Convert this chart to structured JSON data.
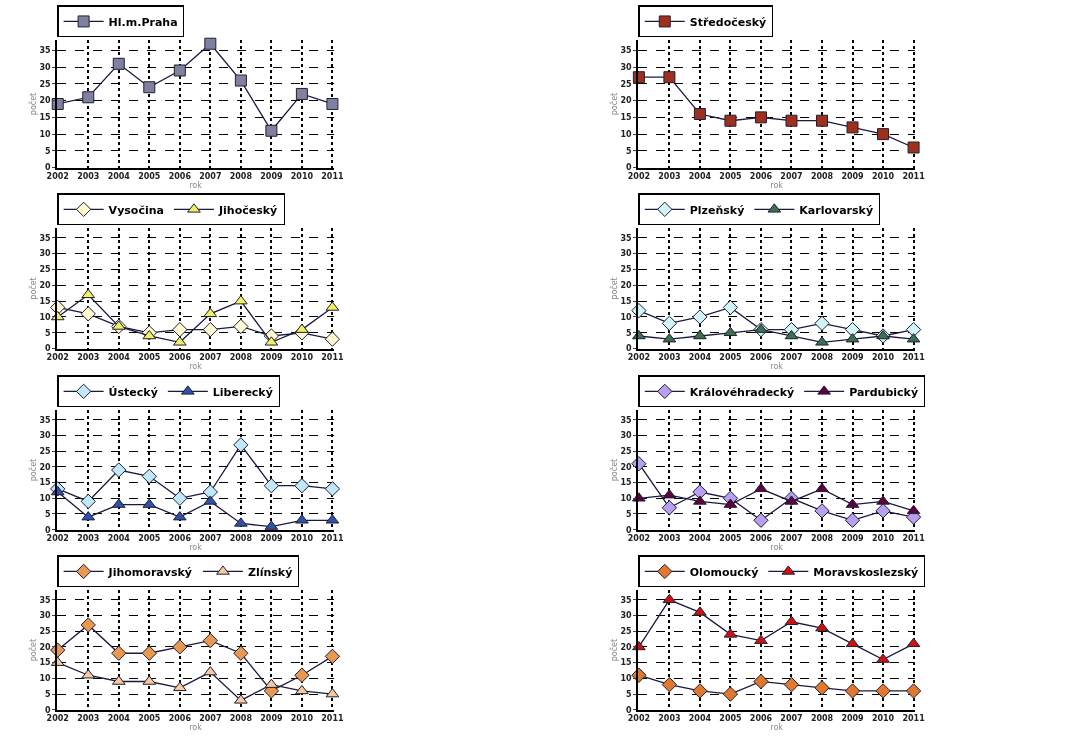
{
  "chart_data": [
    {
      "type": "line",
      "categories": [
        "2002",
        "2003",
        "2004",
        "2005",
        "2006",
        "2007",
        "2008",
        "2009",
        "2010",
        "2011"
      ],
      "xlabel": "rok",
      "ylabel": "počet",
      "ylim": [
        0,
        38
      ],
      "yticks": [
        0,
        5,
        10,
        15,
        20,
        25,
        30,
        35
      ],
      "grid": true,
      "legend": "top",
      "line_style": "solid",
      "series": [
        {
          "name": "Hl.m.Praha",
          "color": "#8080a0",
          "marker": "square",
          "values": [
            19,
            21,
            31,
            24,
            29,
            37,
            26,
            11,
            22,
            19
          ]
        }
      ]
    },
    {
      "type": "line",
      "categories": [
        "2002",
        "2003",
        "2004",
        "2005",
        "2006",
        "2007",
        "2008",
        "2009",
        "2010",
        "2011"
      ],
      "xlabel": "rok",
      "ylabel": "počet",
      "ylim": [
        0,
        38
      ],
      "yticks": [
        0,
        5,
        10,
        15,
        20,
        25,
        30,
        35
      ],
      "grid": true,
      "legend": "top",
      "line_style": "solid",
      "series": [
        {
          "name": "Středočeský",
          "color": "#a0301e",
          "marker": "square",
          "values": [
            27,
            27,
            16,
            14,
            15,
            14,
            14,
            12,
            10,
            6
          ]
        }
      ]
    },
    {
      "type": "line",
      "categories": [
        "2002",
        "2003",
        "2004",
        "2005",
        "2006",
        "2007",
        "2008",
        "2009",
        "2010",
        "2011"
      ],
      "xlabel": "rok",
      "ylabel": "počet",
      "ylim": [
        0,
        38
      ],
      "yticks": [
        0,
        5,
        10,
        15,
        20,
        25,
        30,
        35
      ],
      "grid": true,
      "legend": "top",
      "line_style": "solid",
      "series": [
        {
          "name": "Vysočina",
          "color": "#fff8d0",
          "marker": "diamond",
          "values": [
            13,
            11,
            7,
            5,
            6,
            6,
            7,
            4,
            5,
            3
          ]
        },
        {
          "name": "Jihočeský",
          "color": "#f0f060",
          "marker": "triangle",
          "values": [
            10,
            17,
            7,
            4,
            2,
            11,
            15,
            2,
            6,
            13
          ]
        }
      ]
    },
    {
      "type": "line",
      "categories": [
        "2002",
        "2003",
        "2004",
        "2005",
        "2006",
        "2007",
        "2008",
        "2009",
        "2010",
        "2011"
      ],
      "xlabel": "rok",
      "ylabel": "počet",
      "ylim": [
        0,
        38
      ],
      "yticks": [
        0,
        5,
        10,
        15,
        20,
        25,
        30,
        35
      ],
      "grid": true,
      "legend": "top",
      "line_style": "solid",
      "series": [
        {
          "name": "Plzeňský",
          "color": "#d0f4f8",
          "marker": "diamond",
          "values": [
            12,
            8,
            10,
            13,
            6,
            6,
            8,
            6,
            4,
            6
          ]
        },
        {
          "name": "Karlovarský",
          "color": "#3c7050",
          "marker": "triangle",
          "values": [
            4,
            3,
            4,
            5,
            6,
            4,
            2,
            3,
            4,
            3
          ]
        }
      ]
    },
    {
      "type": "line",
      "categories": [
        "2002",
        "2003",
        "2004",
        "2005",
        "2006",
        "2007",
        "2008",
        "2009",
        "2010",
        "2011"
      ],
      "xlabel": "rok",
      "ylabel": "počet",
      "ylim": [
        0,
        38
      ],
      "yticks": [
        0,
        5,
        10,
        15,
        20,
        25,
        30,
        35
      ],
      "grid": true,
      "legend": "top",
      "line_style": "solid",
      "series": [
        {
          "name": "Ústecký",
          "color": "#c0e8f8",
          "marker": "diamond",
          "values": [
            13,
            9,
            19,
            17,
            10,
            12,
            27,
            14,
            14,
            13
          ]
        },
        {
          "name": "Liberecký",
          "color": "#3050b0",
          "marker": "triangle",
          "values": [
            12,
            4,
            8,
            8,
            4,
            9,
            2,
            1,
            3,
            3
          ]
        }
      ]
    },
    {
      "type": "line",
      "categories": [
        "2002",
        "2003",
        "2004",
        "2005",
        "2006",
        "2007",
        "2008",
        "2009",
        "2010",
        "2011"
      ],
      "xlabel": "rok",
      "ylabel": "počet",
      "ylim": [
        0,
        38
      ],
      "yticks": [
        0,
        5,
        10,
        15,
        20,
        25,
        30,
        35
      ],
      "grid": true,
      "legend": "top",
      "line_style": "solid",
      "series": [
        {
          "name": "Královéhradecký",
          "color": "#b8a0f0",
          "marker": "diamond",
          "values": [
            21,
            7,
            12,
            10,
            3,
            10,
            6,
            3,
            6,
            4
          ]
        },
        {
          "name": "Pardubický",
          "color": "#600040",
          "marker": "triangle",
          "values": [
            10,
            11,
            9,
            8,
            13,
            9,
            13,
            8,
            9,
            6
          ]
        }
      ]
    },
    {
      "type": "line",
      "categories": [
        "2002",
        "2003",
        "2004",
        "2005",
        "2006",
        "2007",
        "2008",
        "2009",
        "2010",
        "2011"
      ],
      "xlabel": "rok",
      "ylabel": "počet",
      "ylim": [
        0,
        38
      ],
      "yticks": [
        0,
        5,
        10,
        15,
        20,
        25,
        30,
        35
      ],
      "grid": true,
      "legend": "top",
      "line_style": "solid",
      "series": [
        {
          "name": "Jihomoravský",
          "color": "#e89850",
          "marker": "diamond",
          "values": [
            19,
            27,
            18,
            18,
            20,
            22,
            18,
            6,
            11,
            17
          ]
        },
        {
          "name": "Zlínský",
          "color": "#f8c8a0",
          "marker": "triangle",
          "values": [
            15,
            11,
            9,
            9,
            7,
            12,
            3,
            8,
            6,
            5
          ]
        }
      ]
    },
    {
      "type": "line",
      "categories": [
        "2002",
        "2003",
        "2004",
        "2005",
        "2006",
        "2007",
        "2008",
        "2009",
        "2010",
        "2011"
      ],
      "xlabel": "rok",
      "ylabel": "počet",
      "ylim": [
        0,
        38
      ],
      "yticks": [
        0,
        5,
        10,
        15,
        20,
        25,
        30,
        35
      ],
      "grid": true,
      "legend": "top",
      "line_style": "solid",
      "series": [
        {
          "name": "Olomoucký",
          "color": "#e07830",
          "marker": "diamond",
          "values": [
            11,
            8,
            6,
            5,
            9,
            8,
            7,
            6,
            6,
            6
          ]
        },
        {
          "name": "Moravskoslezský",
          "color": "#d01010",
          "marker": "triangle",
          "values": [
            20,
            35,
            31,
            24,
            22,
            28,
            26,
            21,
            16,
            21
          ]
        }
      ]
    }
  ]
}
